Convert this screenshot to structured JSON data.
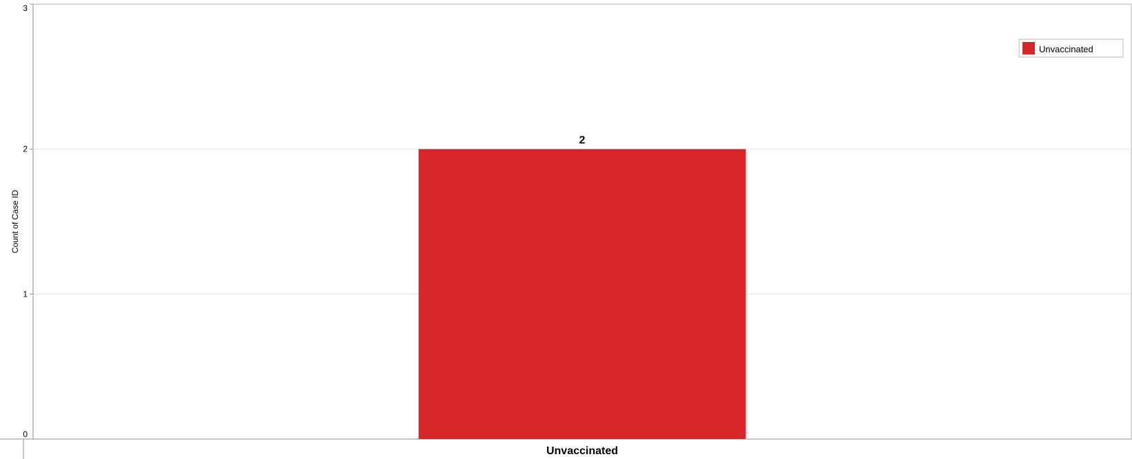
{
  "chart_data": {
    "type": "bar",
    "categories": [
      "Unvaccinated"
    ],
    "series": [
      {
        "name": "Unvaccinated",
        "values": [
          2
        ],
        "color": "#d62628"
      }
    ],
    "ylabel": "Count of Case ID",
    "xlabel": "",
    "ylim": [
      0,
      3
    ],
    "yticks": [
      "0",
      "1",
      "2",
      "3"
    ],
    "data_labels": [
      "2"
    ],
    "grid": true,
    "legend": {
      "position": "top-right",
      "entries": [
        "Unvaccinated"
      ]
    }
  }
}
